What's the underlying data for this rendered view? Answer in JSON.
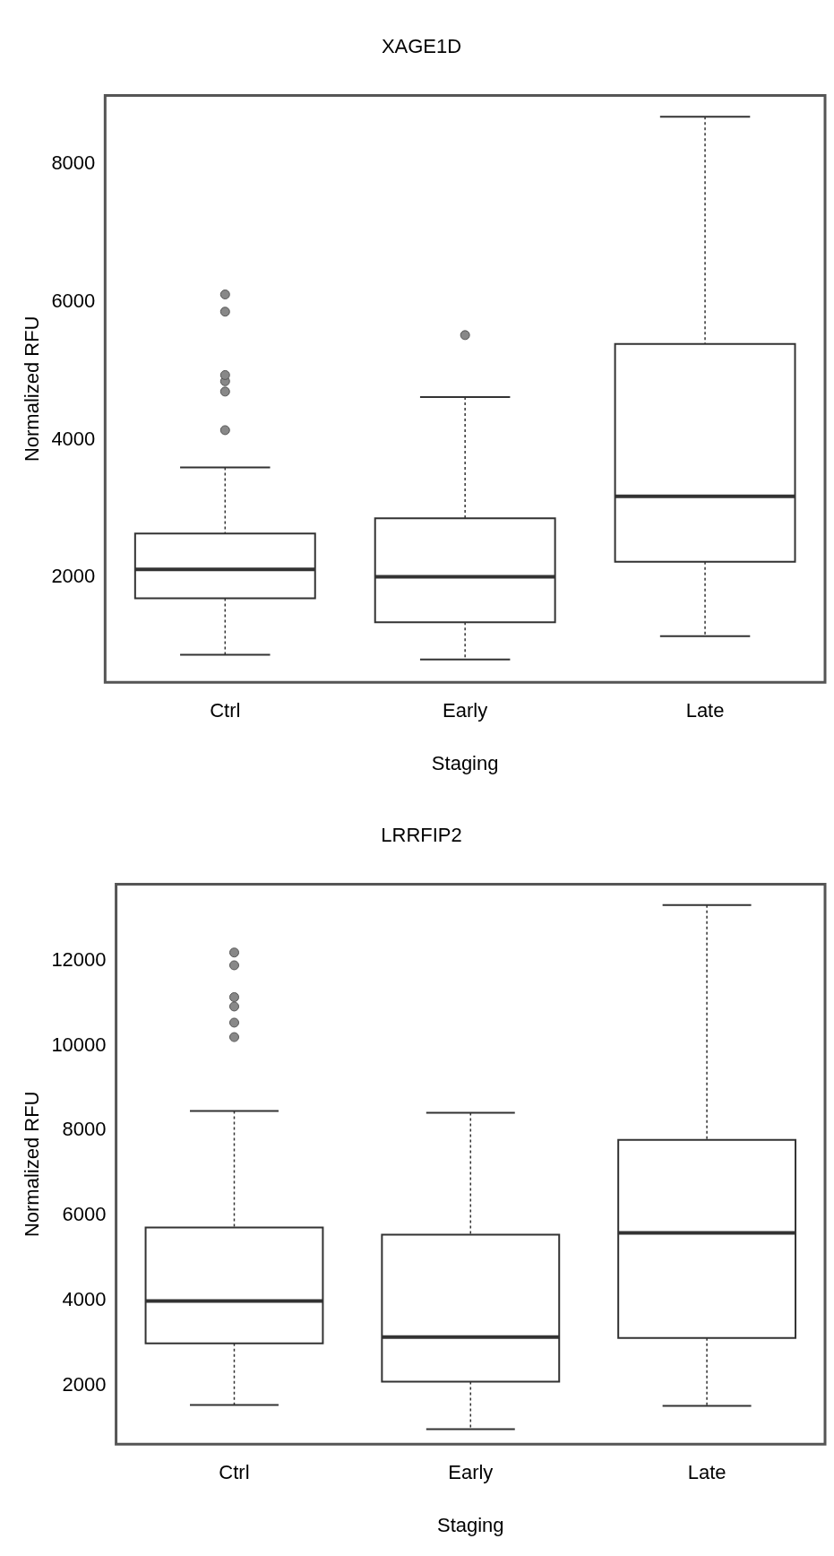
{
  "chart_data": [
    {
      "type": "box",
      "title": "XAGE1D",
      "xlabel": "Staging",
      "ylabel": "Normalized RFU",
      "categories": [
        "Ctrl",
        "Early",
        "Late"
      ],
      "color": "#333333",
      "ylim": [
        480,
        9000
      ],
      "yticks": [
        2000,
        4000,
        6000,
        8000
      ],
      "grid": false,
      "boxes": [
        {
          "low": 880,
          "q1": 1700,
          "median": 2120,
          "q3": 2640,
          "high": 3600,
          "outliers": [
            4140,
            4700,
            4850,
            4940,
            5860,
            6110
          ]
        },
        {
          "low": 810,
          "q1": 1350,
          "median": 2010,
          "q3": 2860,
          "high": 4620,
          "outliers": [
            5520
          ]
        },
        {
          "low": 1150,
          "q1": 2230,
          "median": 3180,
          "q3": 5390,
          "high": 8690
        }
      ]
    },
    {
      "type": "box",
      "title": "LRRFIP2",
      "xlabel": "Staging",
      "ylabel": "Normalized RFU",
      "categories": [
        "Ctrl",
        "Early",
        "Late"
      ],
      "color": "#333333",
      "ylim": [
        620,
        13800
      ],
      "yticks": [
        2000,
        4000,
        6000,
        8000,
        10000,
        12000
      ],
      "grid": false,
      "boxes": [
        {
          "low": 1540,
          "q1": 2990,
          "median": 3990,
          "q3": 5720,
          "high": 8460,
          "outliers": [
            10200,
            10540,
            10920,
            11140,
            11890,
            12190
          ]
        },
        {
          "low": 970,
          "q1": 2090,
          "median": 3140,
          "q3": 5550,
          "high": 8420
        },
        {
          "low": 1520,
          "q1": 3120,
          "median": 5590,
          "q3": 7780,
          "high": 13310
        }
      ]
    }
  ]
}
